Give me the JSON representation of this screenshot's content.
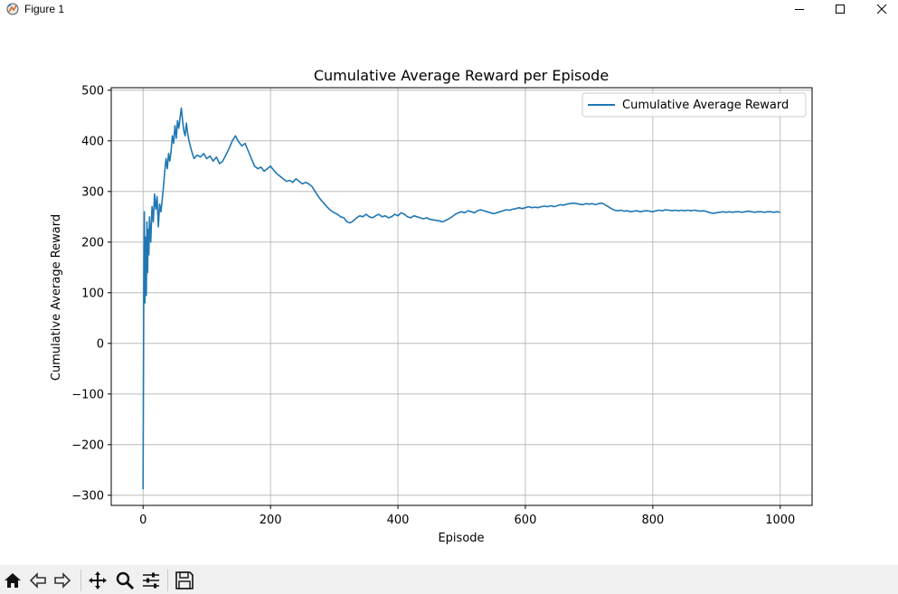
{
  "window": {
    "title": "Figure 1",
    "icons": [
      "figure-app-icon",
      "minimize-icon",
      "maximize-icon",
      "close-icon"
    ]
  },
  "toolbar": {
    "buttons": [
      "home-icon",
      "back-icon",
      "forward-icon",
      "pan-icon",
      "zoom-icon",
      "configure-subplots-icon",
      "save-icon"
    ]
  },
  "chart_data": {
    "type": "line",
    "title": "Cumulative Average Reward per Episode",
    "xlabel": "Episode",
    "ylabel": "Cumulative Average Reward",
    "xlim": [
      -50,
      1050
    ],
    "ylim": [
      -320,
      505
    ],
    "xticks": [
      "0",
      "200",
      "400",
      "600",
      "800",
      "1000"
    ],
    "yticks": [
      "500",
      "400",
      "300",
      "200",
      "100",
      "0",
      "−100",
      "−200",
      "−300"
    ],
    "grid": true,
    "legend_position": "top-right",
    "color": "#1f77b4",
    "series": [
      {
        "name": "Cumulative Average Reward",
        "points": [
          [
            0,
            -288
          ],
          [
            1,
            60
          ],
          [
            2,
            260
          ],
          [
            3,
            80
          ],
          [
            4,
            210
          ],
          [
            5,
            95
          ],
          [
            6,
            240
          ],
          [
            7,
            140
          ],
          [
            8,
            225
          ],
          [
            9,
            175
          ],
          [
            10,
            250
          ],
          [
            12,
            200
          ],
          [
            14,
            270
          ],
          [
            16,
            240
          ],
          [
            18,
            295
          ],
          [
            20,
            265
          ],
          [
            22,
            290
          ],
          [
            24,
            230
          ],
          [
            26,
            275
          ],
          [
            28,
            260
          ],
          [
            30,
            285
          ],
          [
            32,
            310
          ],
          [
            34,
            340
          ],
          [
            36,
            365
          ],
          [
            38,
            345
          ],
          [
            40,
            375
          ],
          [
            42,
            360
          ],
          [
            44,
            380
          ],
          [
            46,
            410
          ],
          [
            48,
            395
          ],
          [
            50,
            430
          ],
          [
            52,
            405
          ],
          [
            54,
            440
          ],
          [
            56,
            425
          ],
          [
            58,
            445
          ],
          [
            60,
            465
          ],
          [
            62,
            440
          ],
          [
            64,
            420
          ],
          [
            66,
            410
          ],
          [
            68,
            435
          ],
          [
            70,
            415
          ],
          [
            72,
            400
          ],
          [
            75,
            385
          ],
          [
            78,
            372
          ],
          [
            80,
            365
          ],
          [
            85,
            372
          ],
          [
            90,
            368
          ],
          [
            95,
            375
          ],
          [
            100,
            365
          ],
          [
            105,
            370
          ],
          [
            110,
            360
          ],
          [
            115,
            368
          ],
          [
            120,
            355
          ],
          [
            125,
            360
          ],
          [
            130,
            372
          ],
          [
            135,
            385
          ],
          [
            140,
            400
          ],
          [
            145,
            410
          ],
          [
            150,
            398
          ],
          [
            155,
            390
          ],
          [
            160,
            395
          ],
          [
            165,
            380
          ],
          [
            170,
            365
          ],
          [
            175,
            350
          ],
          [
            180,
            345
          ],
          [
            185,
            348
          ],
          [
            190,
            340
          ],
          [
            195,
            345
          ],
          [
            200,
            350
          ],
          [
            205,
            342
          ],
          [
            210,
            335
          ],
          [
            215,
            330
          ],
          [
            220,
            325
          ],
          [
            225,
            320
          ],
          [
            230,
            322
          ],
          [
            235,
            318
          ],
          [
            240,
            325
          ],
          [
            245,
            320
          ],
          [
            250,
            315
          ],
          [
            255,
            318
          ],
          [
            260,
            315
          ],
          [
            265,
            310
          ],
          [
            270,
            300
          ],
          [
            275,
            290
          ],
          [
            280,
            282
          ],
          [
            285,
            275
          ],
          [
            290,
            268
          ],
          [
            295,
            262
          ],
          [
            300,
            258
          ],
          [
            305,
            255
          ],
          [
            310,
            250
          ],
          [
            315,
            248
          ],
          [
            320,
            240
          ],
          [
            325,
            238
          ],
          [
            330,
            242
          ],
          [
            335,
            248
          ],
          [
            340,
            252
          ],
          [
            345,
            250
          ],
          [
            350,
            255
          ],
          [
            355,
            250
          ],
          [
            360,
            248
          ],
          [
            365,
            252
          ],
          [
            370,
            255
          ],
          [
            375,
            250
          ],
          [
            380,
            252
          ],
          [
            385,
            248
          ],
          [
            390,
            250
          ],
          [
            395,
            255
          ],
          [
            400,
            252
          ],
          [
            405,
            258
          ],
          [
            410,
            255
          ],
          [
            415,
            250
          ],
          [
            420,
            248
          ],
          [
            425,
            252
          ],
          [
            430,
            250
          ],
          [
            435,
            248
          ],
          [
            440,
            246
          ],
          [
            445,
            248
          ],
          [
            450,
            245
          ],
          [
            455,
            244
          ],
          [
            460,
            243
          ],
          [
            465,
            242
          ],
          [
            470,
            240
          ],
          [
            475,
            243
          ],
          [
            480,
            246
          ],
          [
            485,
            250
          ],
          [
            490,
            255
          ],
          [
            495,
            258
          ],
          [
            500,
            260
          ],
          [
            505,
            258
          ],
          [
            510,
            262
          ],
          [
            515,
            260
          ],
          [
            520,
            258
          ],
          [
            525,
            262
          ],
          [
            530,
            264
          ],
          [
            535,
            262
          ],
          [
            540,
            260
          ],
          [
            545,
            258
          ],
          [
            550,
            256
          ],
          [
            555,
            258
          ],
          [
            560,
            260
          ],
          [
            565,
            262
          ],
          [
            570,
            264
          ],
          [
            575,
            263
          ],
          [
            580,
            265
          ],
          [
            585,
            266
          ],
          [
            590,
            268
          ],
          [
            595,
            266
          ],
          [
            600,
            268
          ],
          [
            605,
            270
          ],
          [
            610,
            268
          ],
          [
            615,
            269
          ],
          [
            620,
            268
          ],
          [
            625,
            270
          ],
          [
            630,
            271
          ],
          [
            635,
            270
          ],
          [
            640,
            272
          ],
          [
            645,
            270
          ],
          [
            650,
            272
          ],
          [
            655,
            274
          ],
          [
            660,
            273
          ],
          [
            665,
            275
          ],
          [
            670,
            276
          ],
          [
            675,
            277
          ],
          [
            680,
            276
          ],
          [
            685,
            275
          ],
          [
            690,
            274
          ],
          [
            695,
            276
          ],
          [
            700,
            275
          ],
          [
            705,
            276
          ],
          [
            710,
            274
          ],
          [
            715,
            276
          ],
          [
            720,
            277
          ],
          [
            725,
            274
          ],
          [
            730,
            270
          ],
          [
            735,
            266
          ],
          [
            740,
            263
          ],
          [
            745,
            262
          ],
          [
            750,
            263
          ],
          [
            755,
            261
          ],
          [
            760,
            262
          ],
          [
            765,
            260
          ],
          [
            770,
            261
          ],
          [
            775,
            262
          ],
          [
            780,
            260
          ],
          [
            785,
            261
          ],
          [
            790,
            262
          ],
          [
            795,
            261
          ],
          [
            800,
            260
          ],
          [
            805,
            262
          ],
          [
            810,
            263
          ],
          [
            815,
            262
          ],
          [
            820,
            264
          ],
          [
            825,
            263
          ],
          [
            830,
            262
          ],
          [
            835,
            263
          ],
          [
            840,
            262
          ],
          [
            845,
            263
          ],
          [
            850,
            262
          ],
          [
            855,
            263
          ],
          [
            860,
            262
          ],
          [
            865,
            263
          ],
          [
            870,
            262
          ],
          [
            875,
            261
          ],
          [
            880,
            262
          ],
          [
            885,
            260
          ],
          [
            890,
            258
          ],
          [
            895,
            257
          ],
          [
            900,
            258
          ],
          [
            905,
            259
          ],
          [
            910,
            260
          ],
          [
            915,
            259
          ],
          [
            920,
            260
          ],
          [
            925,
            259
          ],
          [
            930,
            260
          ],
          [
            935,
            260
          ],
          [
            940,
            259
          ],
          [
            945,
            260
          ],
          [
            950,
            261
          ],
          [
            955,
            260
          ],
          [
            960,
            259
          ],
          [
            965,
            260
          ],
          [
            970,
            260
          ],
          [
            975,
            259
          ],
          [
            980,
            260
          ],
          [
            985,
            260
          ],
          [
            990,
            259
          ],
          [
            995,
            260
          ],
          [
            1000,
            259
          ]
        ]
      }
    ]
  }
}
